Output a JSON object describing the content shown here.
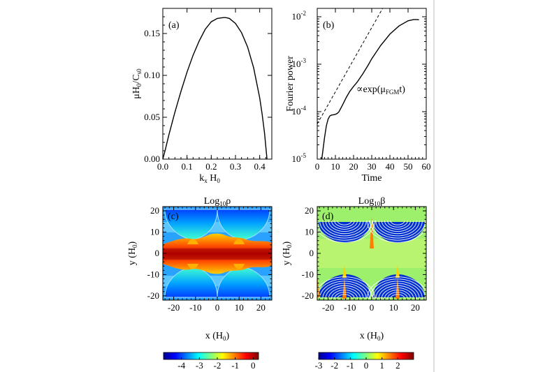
{
  "panels": {
    "a": {
      "label": "(a)"
    },
    "b": {
      "label": "(b)",
      "annotation": "∝exp(μ",
      "annotation_sub": "FGM",
      "annotation_tail": "t)"
    },
    "c": {
      "label": "(c)",
      "title": "Log",
      "title_sub": "10",
      "title_sym": "ρ"
    },
    "d": {
      "label": "(d)",
      "title": "Log",
      "title_sub": "10",
      "title_sym": "β"
    }
  },
  "chart_data": [
    {
      "type": "line",
      "panel": "(a)",
      "xlabel": "k_x H_0",
      "ylabel": "μH_0/C_s0",
      "xlim": [
        0,
        0.45
      ],
      "ylim": [
        0,
        0.18
      ],
      "xticks": [
        "0.0",
        "0.1",
        "0.2",
        "0.3",
        "0.4"
      ],
      "yticks": [
        "0.00",
        "0.05",
        "0.10",
        "0.15"
      ],
      "series": [
        {
          "x": [
            0.0,
            0.01,
            0.025,
            0.05,
            0.075,
            0.1,
            0.125,
            0.15,
            0.175,
            0.2,
            0.225,
            0.25,
            0.26,
            0.275,
            0.3,
            0.325,
            0.35,
            0.375,
            0.4,
            0.41,
            0.42,
            0.43
          ],
          "values": [
            0.0,
            0.011,
            0.029,
            0.056,
            0.081,
            0.104,
            0.124,
            0.141,
            0.155,
            0.164,
            0.168,
            0.169,
            0.169,
            0.168,
            0.162,
            0.151,
            0.134,
            0.109,
            0.073,
            0.054,
            0.031,
            0.0
          ]
        }
      ]
    },
    {
      "type": "line",
      "panel": "(b)",
      "xlabel": "Time",
      "ylabel": "Fourier power",
      "yscale": "log",
      "xlim": [
        0,
        60
      ],
      "ylim": [
        1e-05,
        0.015
      ],
      "xticks": [
        "0",
        "10",
        "20",
        "30",
        "40",
        "50",
        "60"
      ],
      "yticks": [
        "10^-5",
        "10^-4",
        "10^-3",
        "10^-2"
      ],
      "series": [
        {
          "style": "solid",
          "x": [
            2.5,
            3,
            4,
            5,
            6,
            7,
            8,
            9,
            10,
            11,
            12,
            14,
            16,
            18,
            20,
            22,
            25,
            28,
            30,
            35,
            40,
            45,
            50,
            53,
            55,
            56
          ],
          "values": [
            1e-05,
            1.4e-05,
            2.8e-05,
            5e-05,
            7e-05,
            8.2e-05,
            8.5e-05,
            8.6e-05,
            8.8e-05,
            9.2e-05,
            0.0001,
            0.00014,
            0.0002,
            0.00027,
            0.00034,
            0.00042,
            0.00062,
            0.00095,
            0.0013,
            0.0025,
            0.0043,
            0.0064,
            0.0082,
            0.0087,
            0.0087,
            0.0086
          ]
        },
        {
          "style": "dashed",
          "x": [
            0,
            36
          ],
          "values": [
            5.5e-05,
            0.015
          ]
        }
      ]
    },
    {
      "type": "heatmap",
      "panel": "(c)",
      "title": "Log10 ρ",
      "xlabel": "x (H_0)",
      "ylabel": "y (H_0)",
      "xlim": [
        -25,
        25
      ],
      "ylim": [
        -22,
        22
      ],
      "xticks": [
        "-20",
        "-10",
        "0",
        "10",
        "20"
      ],
      "yticks": [
        "-20",
        "-10",
        "0",
        "10",
        "20"
      ],
      "colorbar": {
        "min": -5,
        "max": 0.3,
        "ticks": [
          "-4",
          "-3",
          "-2",
          "-1",
          "0"
        ]
      }
    },
    {
      "type": "heatmap",
      "panel": "(d)",
      "title": "Log10 β",
      "xlabel": "x (H_0)",
      "ylabel": "y (H_0)",
      "xlim": [
        -25,
        25
      ],
      "ylim": [
        -22,
        22
      ],
      "xticks": [
        "-20",
        "-10",
        "0",
        "10",
        "20"
      ],
      "yticks": [
        "-20",
        "-10",
        "0",
        "10",
        "20"
      ],
      "colorbar": {
        "min": -3,
        "max": 3,
        "ticks": [
          "-3",
          "-2",
          "-1",
          "0",
          "1",
          "2"
        ]
      }
    }
  ]
}
